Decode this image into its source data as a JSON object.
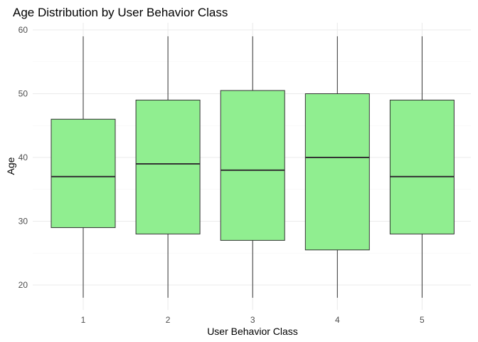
{
  "chart_data": {
    "type": "boxplot",
    "title": "Age Distribution by User Behavior Class",
    "xlabel": "User Behavior Class",
    "ylabel": "Age",
    "categories": [
      "1",
      "2",
      "3",
      "4",
      "5"
    ],
    "boxes": [
      {
        "category": "1",
        "min": 18,
        "q1": 29,
        "median": 37,
        "q3": 46,
        "max": 59
      },
      {
        "category": "2",
        "min": 18,
        "q1": 28,
        "median": 39,
        "q3": 49,
        "max": 59
      },
      {
        "category": "3",
        "min": 18,
        "q1": 27,
        "median": 38,
        "q3": 50.5,
        "max": 59
      },
      {
        "category": "4",
        "min": 18,
        "q1": 25.5,
        "median": 40,
        "q3": 50,
        "max": 59
      },
      {
        "category": "5",
        "min": 18,
        "q1": 28,
        "median": 37,
        "q3": 49,
        "max": 59
      }
    ],
    "ylim": [
      16,
      61
    ],
    "yticks": [
      "20",
      "30",
      "40",
      "50",
      "60"
    ],
    "grid": true,
    "fill_color": "#90EE90",
    "line_color": "#333333"
  }
}
